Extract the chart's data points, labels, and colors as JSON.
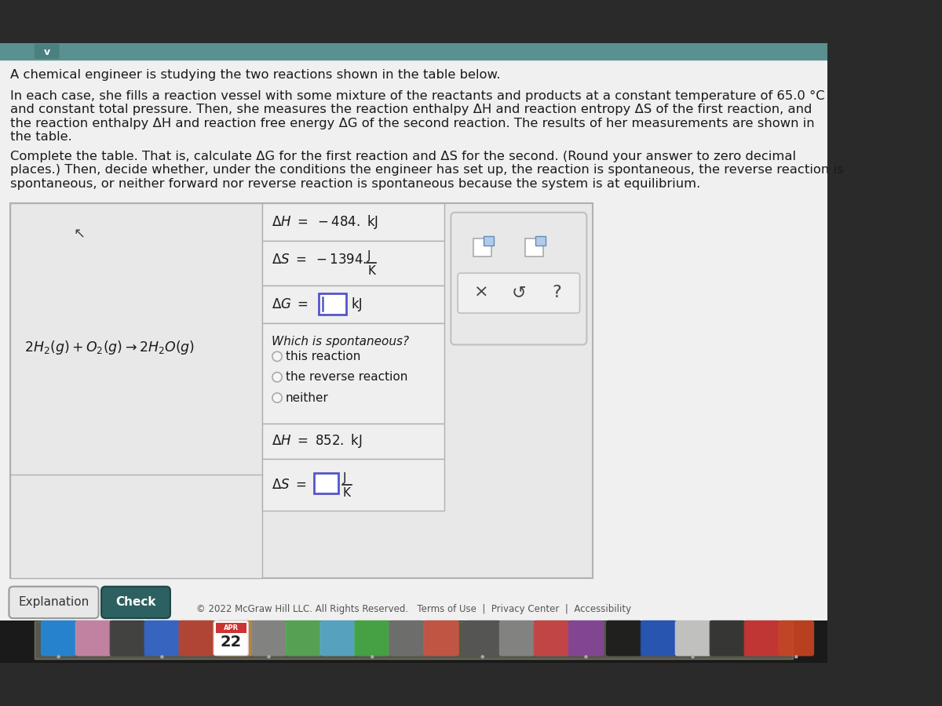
{
  "title": "A chemical engineer is studying the two reactions shown in the table below.",
  "para1_lines": [
    "In each case, she fills a reaction vessel with some mixture of the reactants and products at a constant temperature of 65.0 °C",
    "and constant total pressure. Then, she measures the reaction enthalpy ΔH and reaction entropy ΔS of the first reaction, and",
    "the reaction enthalpy ΔH and reaction free energy ΔG of the second reaction. The results of her measurements are shown in",
    "the table."
  ],
  "para2_lines": [
    "Complete the table. That is, calculate ΔG for the first reaction and ΔS for the second. (Round your answer to zero decimal",
    "places.) Then, decide whether, under the conditions the engineer has set up, the reaction is spontaneous, the reverse reaction is",
    "spontaneous, or neither forward nor reverse reaction is spontaneous because the system is at equilibrium."
  ],
  "reaction": "2H₂(g) + O₂(g) → 2H₂O(g)",
  "dH1": "ΔH = −484. kJ",
  "dS1_pre": "ΔS = −1394.",
  "dG1_pre": "ΔG =",
  "dG1_unit": "kJ",
  "spontaneous_q": "Which is spontaneous?",
  "radio_options": [
    "this reaction",
    "the reverse reaction",
    "neither"
  ],
  "dH2": "ΔH = 852. kJ",
  "dS2_pre": "ΔS =",
  "explanation_btn": "Explanation",
  "check_btn": "Check",
  "footer": "© 2022 McGraw Hill LLC. All Rights Reserved.   Terms of Use  |  Privacy Center  |  Accessibility",
  "bg_outer": "#2a2a2a",
  "bg_page": "#f0f0f0",
  "bg_content": "#f0f0f0",
  "teal_bar": "#5b9090",
  "table_bg": "#e8e8e8",
  "cell_bg": "#efefef",
  "border_color": "#b0b0b0",
  "right_panel_bg": "#e0e0e0",
  "right_panel_border": "#c0c0c0",
  "input_border": "#5555cc",
  "text_dark": "#1a1a1a",
  "text_medium": "#333333",
  "radio_color": "#888888",
  "check_btn_bg": "#2d6060",
  "check_btn_border": "#1d4545",
  "exp_btn_bg": "#e8e8e8",
  "symbol_color": "#555555",
  "icon1_bg": "#ffffff",
  "icon1_inner": "#a0c0e0",
  "icon2_bg": "#ffffff",
  "icon2_inner": "#a0c0e0"
}
